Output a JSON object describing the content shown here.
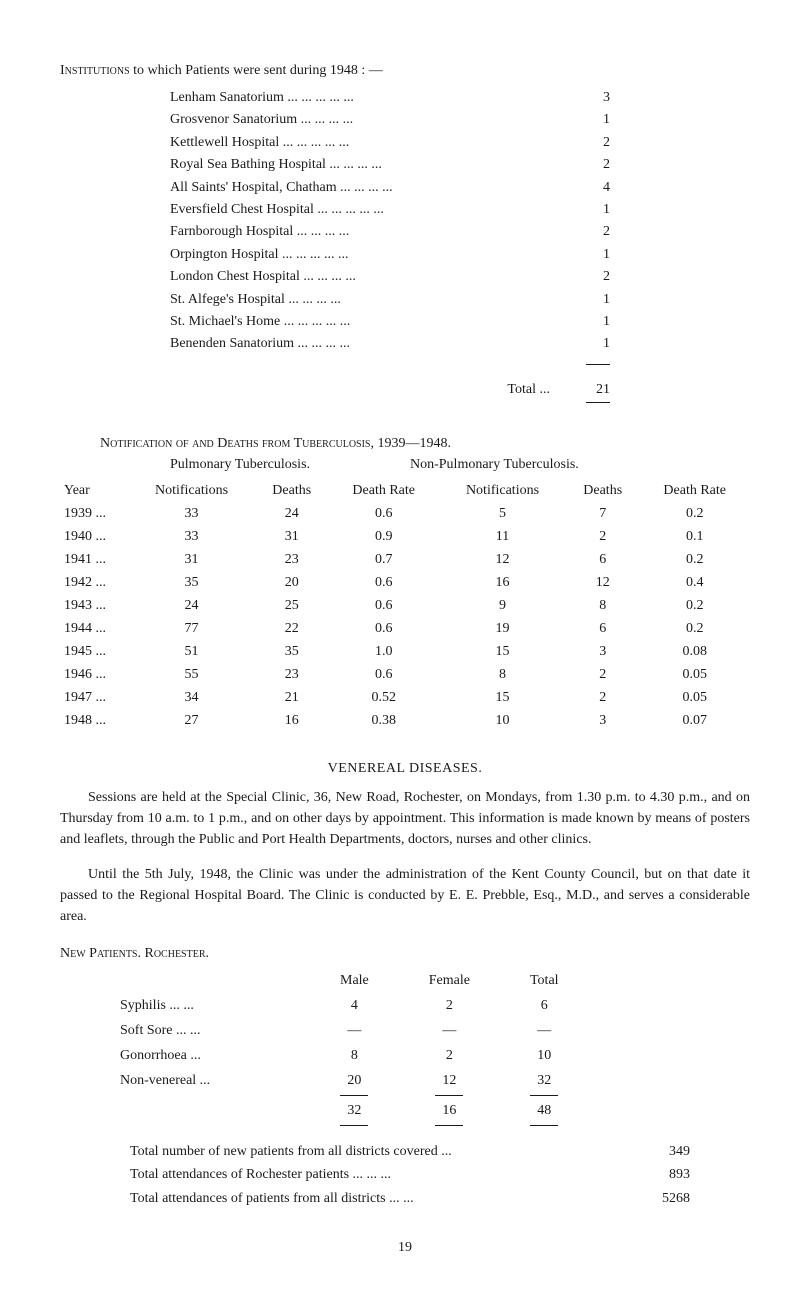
{
  "institutions": {
    "heading": "Institutions",
    "heading_rest": " to which Patients were sent during 1948 : —",
    "rows": [
      {
        "name": "Lenham Sanatorium ...",
        "val": "3"
      },
      {
        "name": "Grosvenor Sanatorium",
        "val": "1"
      },
      {
        "name": "Kettlewell Hospital ...",
        "val": "2"
      },
      {
        "name": "Royal Sea Bathing Hospital",
        "val": "2"
      },
      {
        "name": "All Saints' Hospital, Chatham",
        "val": "4"
      },
      {
        "name": "Eversfield Chest Hospital ...",
        "val": "1"
      },
      {
        "name": "Farnborough Hospital",
        "val": "2"
      },
      {
        "name": "Orpington Hospital ...",
        "val": "1"
      },
      {
        "name": "London Chest Hospital",
        "val": "2"
      },
      {
        "name": "St. Alfege's Hospital",
        "val": "1"
      },
      {
        "name": "St. Michael's Home ...",
        "val": "1"
      },
      {
        "name": "Benenden Sanatorium",
        "val": "1"
      }
    ],
    "total_label": "Total   ...",
    "total_val": "21"
  },
  "tb": {
    "heading": "Notification of and Deaths from Tuberculosis, 1939—1948.",
    "sub_left": "Pulmonary Tuberculosis.",
    "sub_right": "Non-Pulmonary Tuberculosis.",
    "headers": [
      "Year",
      "Notifications",
      "Deaths",
      "Death Rate",
      "Notifications",
      "Deaths",
      "Death Rate"
    ],
    "rows": [
      [
        "1939 ...",
        "33",
        "24",
        "0.6",
        "5",
        "7",
        "0.2"
      ],
      [
        "1940 ...",
        "33",
        "31",
        "0.9",
        "11",
        "2",
        "0.1"
      ],
      [
        "1941 ...",
        "31",
        "23",
        "0.7",
        "12",
        "6",
        "0.2"
      ],
      [
        "1942 ...",
        "35",
        "20",
        "0.6",
        "16",
        "12",
        "0.4"
      ],
      [
        "1943 ...",
        "24",
        "25",
        "0.6",
        "9",
        "8",
        "0.2"
      ],
      [
        "1944 ...",
        "77",
        "22",
        "0.6",
        "19",
        "6",
        "0.2"
      ],
      [
        "1945 ...",
        "51",
        "35",
        "1.0",
        "15",
        "3",
        "0.08"
      ],
      [
        "1946 ...",
        "55",
        "23",
        "0.6",
        "8",
        "2",
        "0.05"
      ],
      [
        "1947 ...",
        "34",
        "21",
        "0.52",
        "15",
        "2",
        "0.05"
      ],
      [
        "1948 ...",
        "27",
        "16",
        "0.38",
        "10",
        "3",
        "0.07"
      ]
    ]
  },
  "vd": {
    "title": "VENEREAL DISEASES.",
    "para1": "Sessions are held at the Special Clinic, 36, New Road, Rochester, on Mondays, from 1.30 p.m. to 4.30 p.m., and on Thursday from 10 a.m. to 1 p.m., and on other days by appointment. This information is made known by means of posters and leaflets, through the Public and Port Health Departments, doctors, nurses and other clinics.",
    "para2": "Until the 5th July, 1948, the Clinic was under the administration of the Kent County Council, but on that date it passed to the Regional Hospital Board. The Clinic is conducted by E. E. Prebble, Esq., M.D., and serves a considerable area."
  },
  "np": {
    "heading": "New Patients. Rochester.",
    "headers": [
      "",
      "Male",
      "Female",
      "Total"
    ],
    "rows": [
      [
        "Syphilis    ...    ...",
        "4",
        "2",
        "6"
      ],
      [
        "Soft Sore   ...    ...",
        "—",
        "—",
        "—"
      ],
      [
        "Gonorrhoea       ...",
        "8",
        "2",
        "10"
      ],
      [
        "Non-venereal     ...",
        "20",
        "12",
        "32"
      ]
    ],
    "totals": [
      "",
      "32",
      "16",
      "48"
    ]
  },
  "summary": [
    {
      "label": "Total number of new patients from all districts covered ...",
      "val": "349"
    },
    {
      "label": "Total attendances of Rochester patients ...    ...    ...",
      "val": "893"
    },
    {
      "label": "Total attendances of patients from all districts ...    ...",
      "val": "5268"
    }
  ],
  "page": "19"
}
